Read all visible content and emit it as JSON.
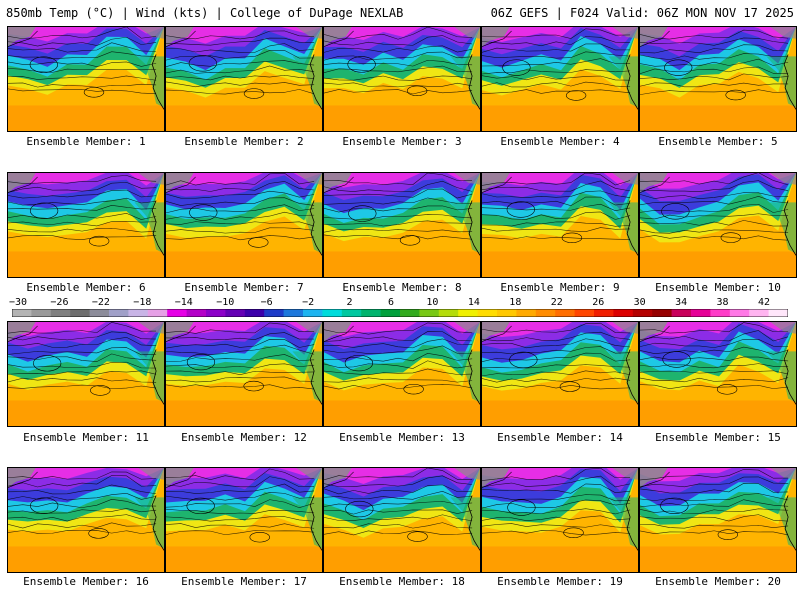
{
  "header": {
    "left": "850mb Temp (°C) | Wind (kts) | College of DuPage NEXLAB",
    "right": "06Z GEFS | F024 Valid: 06Z MON NOV 17 2025"
  },
  "members": [
    {
      "label": "Ensemble Member: 1"
    },
    {
      "label": "Ensemble Member: 2"
    },
    {
      "label": "Ensemble Member: 3"
    },
    {
      "label": "Ensemble Member: 4"
    },
    {
      "label": "Ensemble Member: 5"
    },
    {
      "label": "Ensemble Member: 6"
    },
    {
      "label": "Ensemble Member: 7"
    },
    {
      "label": "Ensemble Member: 8"
    },
    {
      "label": "Ensemble Member: 9"
    },
    {
      "label": "Ensemble Member: 10"
    },
    {
      "label": "Ensemble Member: 11"
    },
    {
      "label": "Ensemble Member: 12"
    },
    {
      "label": "Ensemble Member: 13"
    },
    {
      "label": "Ensemble Member: 14"
    },
    {
      "label": "Ensemble Member: 15"
    },
    {
      "label": "Ensemble Member: 16"
    },
    {
      "label": "Ensemble Member: 17"
    },
    {
      "label": "Ensemble Member: 18"
    },
    {
      "label": "Ensemble Member: 19"
    },
    {
      "label": "Ensemble Member: 20"
    }
  ],
  "colorbar": {
    "ticks": [
      "-30",
      "-26",
      "-22",
      "-18",
      "-14",
      "-10",
      "-6",
      "-2",
      "2",
      "6",
      "10",
      "14",
      "18",
      "22",
      "26",
      "30",
      "34",
      "38",
      "42"
    ],
    "colors": [
      "#b4b4b4",
      "#9a9a9a",
      "#808080",
      "#6e6e6e",
      "#8c8c9a",
      "#a0a0c8",
      "#c8b4e6",
      "#e6a0e6",
      "#e600e6",
      "#b400c8",
      "#8c00c8",
      "#6400b4",
      "#3c00aa",
      "#1e3cc8",
      "#1e78dc",
      "#1eb4f0",
      "#00dcdc",
      "#00c8a0",
      "#00b46e",
      "#00a03c",
      "#32aa1e",
      "#78c814",
      "#b4dc0a",
      "#f0f000",
      "#ffdc00",
      "#ffc800",
      "#ffaa00",
      "#ff8c00",
      "#ff6e00",
      "#ff4600",
      "#f01e00",
      "#dc0000",
      "#b40000",
      "#960000",
      "#c8005a",
      "#e60096",
      "#ff3cc8",
      "#ff78e6",
      "#ffb4f0",
      "#ffe6fa"
    ]
  },
  "map_colors": {
    "cold_top": "#e62ee6",
    "purple": "#8c2ce6",
    "blue": "#3c3cdc",
    "cyan": "#1ec8e6",
    "green": "#1eb46e",
    "yellow": "#f0e614",
    "orange": "#ffb400",
    "deep_orange": "#ff8c00",
    "gray": "#8c8c8c"
  }
}
